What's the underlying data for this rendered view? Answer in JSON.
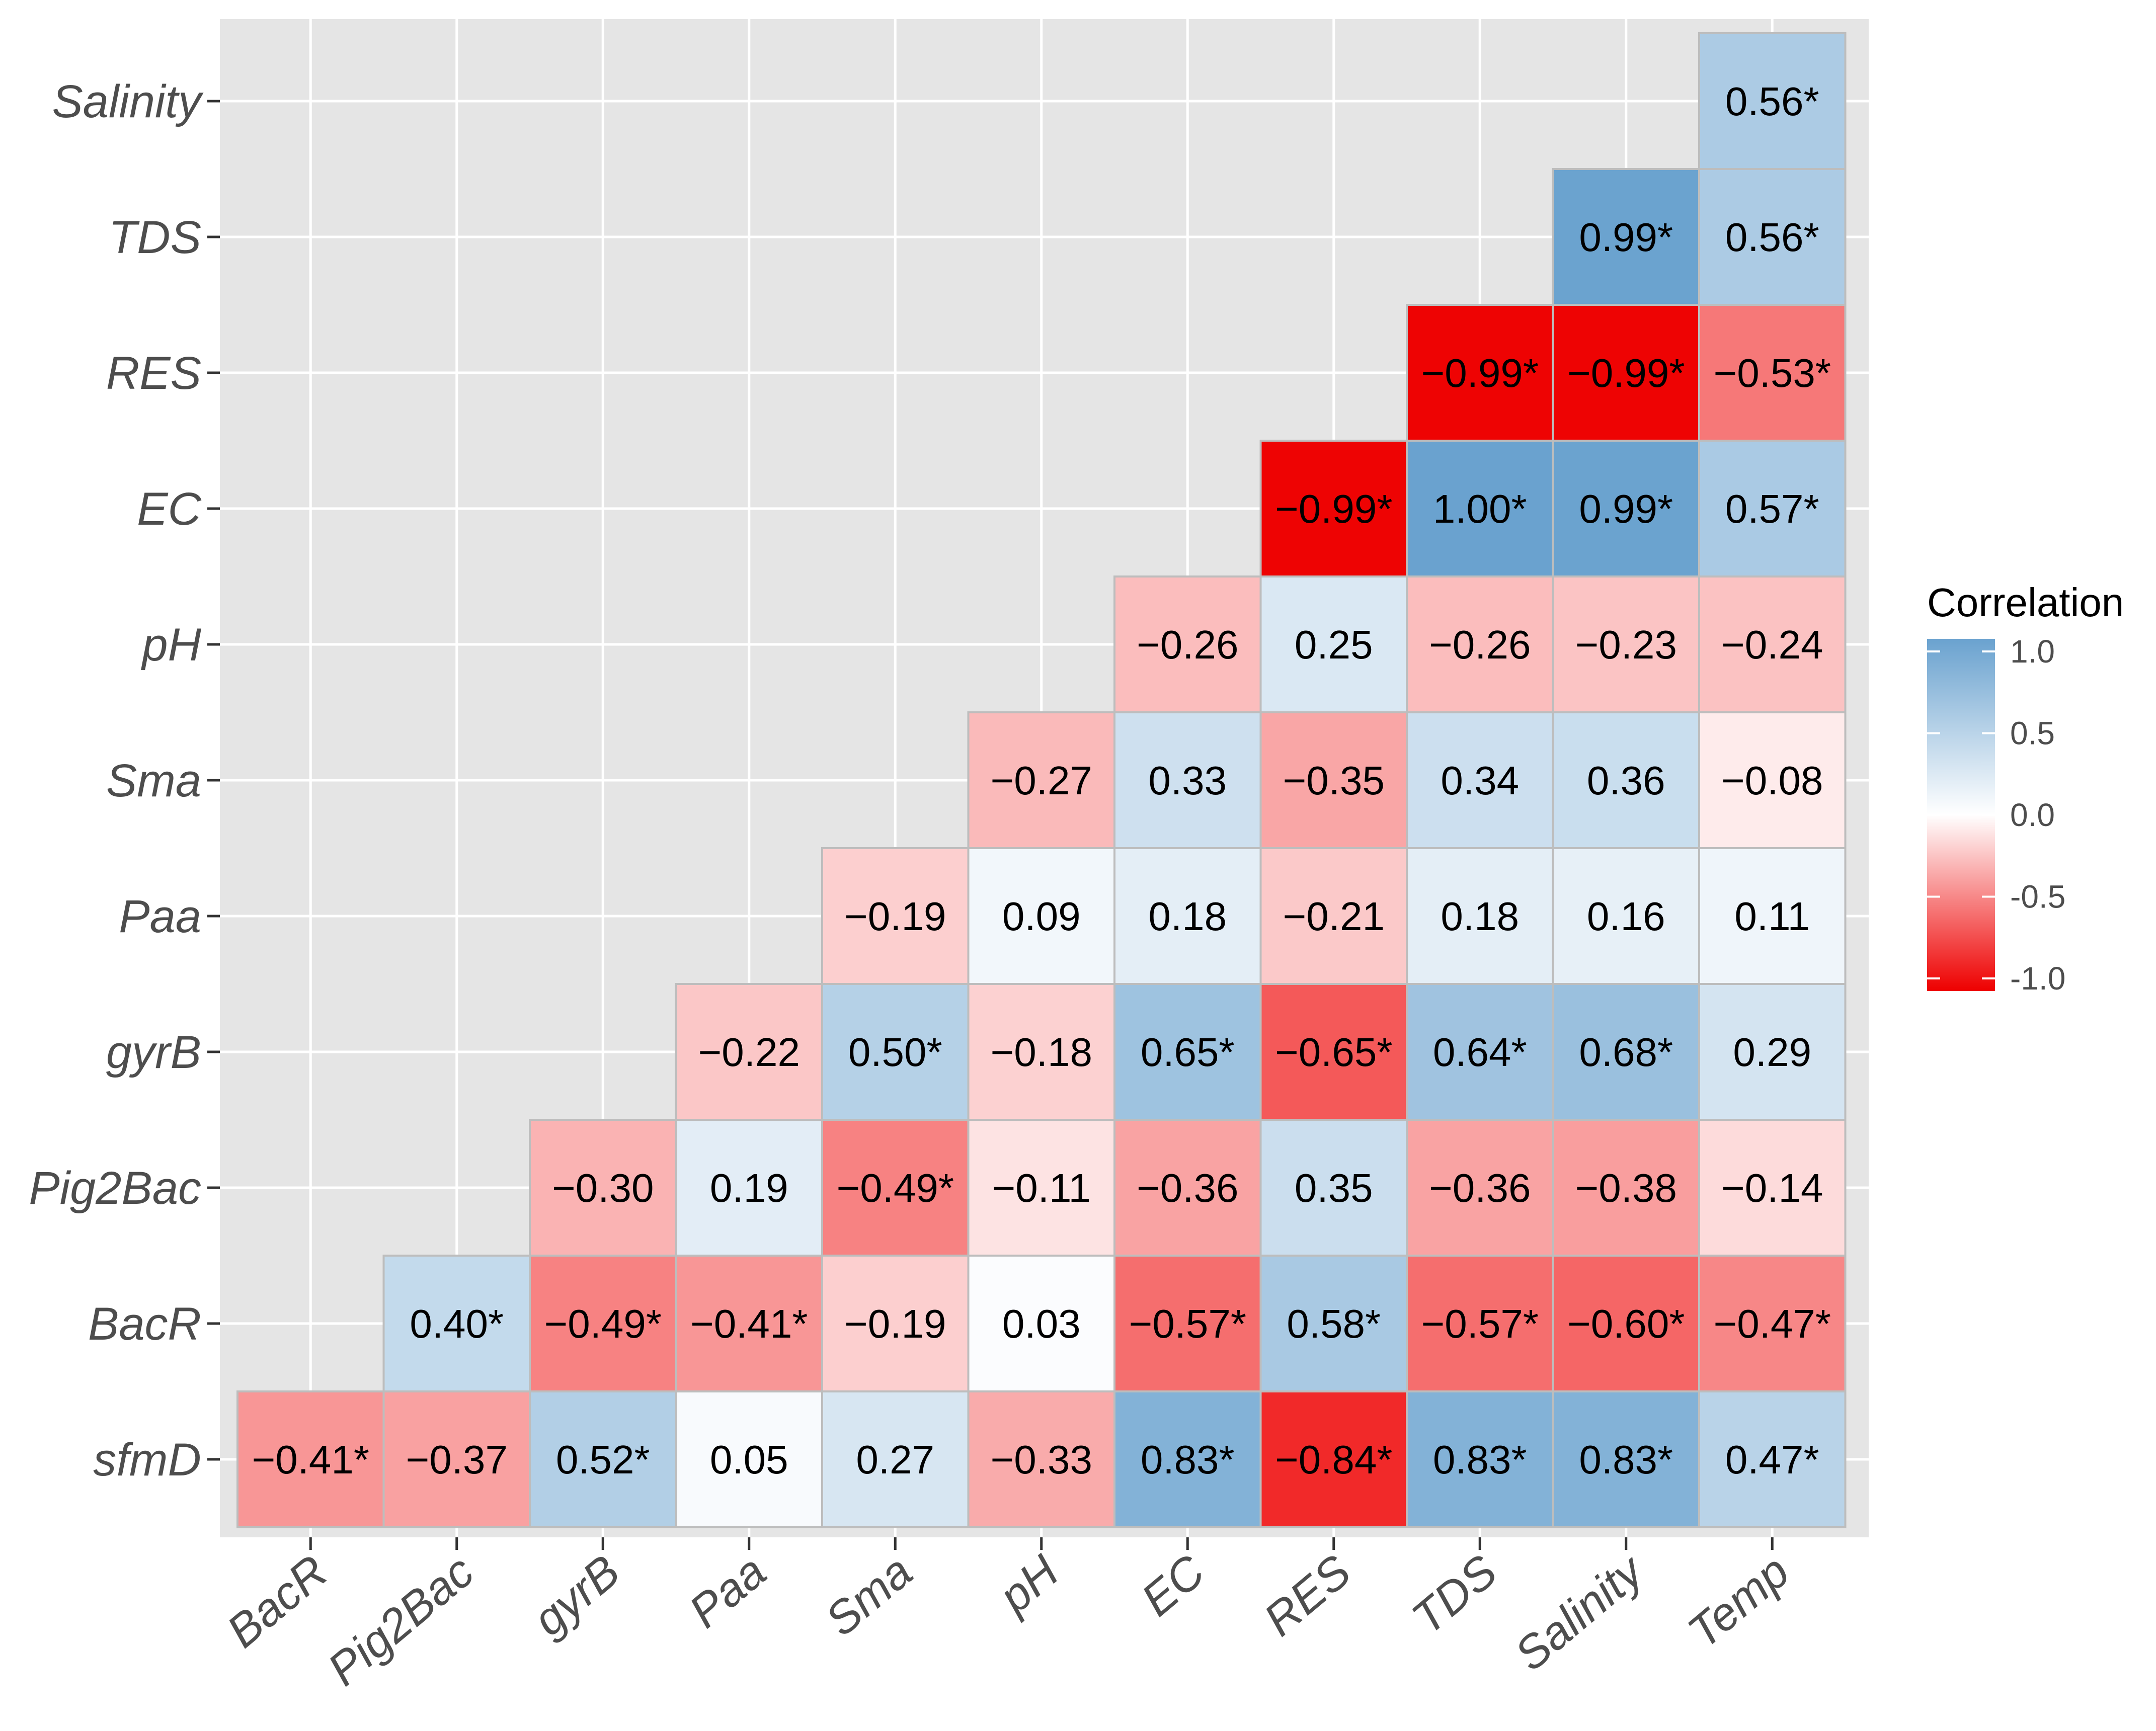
{
  "chart_data": {
    "type": "heatmap",
    "x_categories": [
      "BacR",
      "Pig2Bac",
      "gyrB",
      "Paa",
      "Sma",
      "pH",
      "EC",
      "RES",
      "TDS",
      "Salinity",
      "Temp"
    ],
    "y_categories": [
      "sfmD",
      "BacR",
      "Pig2Bac",
      "gyrB",
      "Paa",
      "Sma",
      "pH",
      "EC",
      "RES",
      "TDS",
      "Salinity"
    ],
    "cells": [
      {
        "x": "BacR",
        "y": "sfmD",
        "value": -0.41,
        "label": "−0.41*"
      },
      {
        "x": "Pig2Bac",
        "y": "sfmD",
        "value": -0.37,
        "label": "−0.37"
      },
      {
        "x": "gyrB",
        "y": "sfmD",
        "value": 0.52,
        "label": "0.52*"
      },
      {
        "x": "Paa",
        "y": "sfmD",
        "value": 0.05,
        "label": "0.05"
      },
      {
        "x": "Sma",
        "y": "sfmD",
        "value": 0.27,
        "label": "0.27"
      },
      {
        "x": "pH",
        "y": "sfmD",
        "value": -0.33,
        "label": "−0.33"
      },
      {
        "x": "EC",
        "y": "sfmD",
        "value": 0.83,
        "label": "0.83*"
      },
      {
        "x": "RES",
        "y": "sfmD",
        "value": -0.84,
        "label": "−0.84*"
      },
      {
        "x": "TDS",
        "y": "sfmD",
        "value": 0.83,
        "label": "0.83*"
      },
      {
        "x": "Salinity",
        "y": "sfmD",
        "value": 0.83,
        "label": "0.83*"
      },
      {
        "x": "Temp",
        "y": "sfmD",
        "value": 0.47,
        "label": "0.47*"
      },
      {
        "x": "Pig2Bac",
        "y": "BacR",
        "value": 0.4,
        "label": "0.40*"
      },
      {
        "x": "gyrB",
        "y": "BacR",
        "value": -0.49,
        "label": "−0.49*"
      },
      {
        "x": "Paa",
        "y": "BacR",
        "value": -0.41,
        "label": "−0.41*"
      },
      {
        "x": "Sma",
        "y": "BacR",
        "value": -0.19,
        "label": "−0.19"
      },
      {
        "x": "pH",
        "y": "BacR",
        "value": 0.03,
        "label": "0.03"
      },
      {
        "x": "EC",
        "y": "BacR",
        "value": -0.57,
        "label": "−0.57*"
      },
      {
        "x": "RES",
        "y": "BacR",
        "value": 0.58,
        "label": "0.58*"
      },
      {
        "x": "TDS",
        "y": "BacR",
        "value": -0.57,
        "label": "−0.57*"
      },
      {
        "x": "Salinity",
        "y": "BacR",
        "value": -0.6,
        "label": "−0.60*"
      },
      {
        "x": "Temp",
        "y": "BacR",
        "value": -0.47,
        "label": "−0.47*"
      },
      {
        "x": "gyrB",
        "y": "Pig2Bac",
        "value": -0.3,
        "label": "−0.30"
      },
      {
        "x": "Paa",
        "y": "Pig2Bac",
        "value": 0.19,
        "label": "0.19"
      },
      {
        "x": "Sma",
        "y": "Pig2Bac",
        "value": -0.49,
        "label": "−0.49*"
      },
      {
        "x": "pH",
        "y": "Pig2Bac",
        "value": -0.11,
        "label": "−0.11"
      },
      {
        "x": "EC",
        "y": "Pig2Bac",
        "value": -0.36,
        "label": "−0.36"
      },
      {
        "x": "RES",
        "y": "Pig2Bac",
        "value": 0.35,
        "label": "0.35"
      },
      {
        "x": "TDS",
        "y": "Pig2Bac",
        "value": -0.36,
        "label": "−0.36"
      },
      {
        "x": "Salinity",
        "y": "Pig2Bac",
        "value": -0.38,
        "label": "−0.38"
      },
      {
        "x": "Temp",
        "y": "Pig2Bac",
        "value": -0.14,
        "label": "−0.14"
      },
      {
        "x": "Paa",
        "y": "gyrB",
        "value": -0.22,
        "label": "−0.22"
      },
      {
        "x": "Sma",
        "y": "gyrB",
        "value": 0.5,
        "label": "0.50*"
      },
      {
        "x": "pH",
        "y": "gyrB",
        "value": -0.18,
        "label": "−0.18"
      },
      {
        "x": "EC",
        "y": "gyrB",
        "value": 0.65,
        "label": "0.65*"
      },
      {
        "x": "RES",
        "y": "gyrB",
        "value": -0.65,
        "label": "−0.65*"
      },
      {
        "x": "TDS",
        "y": "gyrB",
        "value": 0.64,
        "label": "0.64*"
      },
      {
        "x": "Salinity",
        "y": "gyrB",
        "value": 0.68,
        "label": "0.68*"
      },
      {
        "x": "Temp",
        "y": "gyrB",
        "value": 0.29,
        "label": "0.29"
      },
      {
        "x": "Sma",
        "y": "Paa",
        "value": -0.19,
        "label": "−0.19"
      },
      {
        "x": "pH",
        "y": "Paa",
        "value": 0.09,
        "label": "0.09"
      },
      {
        "x": "EC",
        "y": "Paa",
        "value": 0.18,
        "label": "0.18"
      },
      {
        "x": "RES",
        "y": "Paa",
        "value": -0.21,
        "label": "−0.21"
      },
      {
        "x": "TDS",
        "y": "Paa",
        "value": 0.18,
        "label": "0.18"
      },
      {
        "x": "Salinity",
        "y": "Paa",
        "value": 0.16,
        "label": "0.16"
      },
      {
        "x": "Temp",
        "y": "Paa",
        "value": 0.11,
        "label": "0.11"
      },
      {
        "x": "pH",
        "y": "Sma",
        "value": -0.27,
        "label": "−0.27"
      },
      {
        "x": "EC",
        "y": "Sma",
        "value": 0.33,
        "label": "0.33"
      },
      {
        "x": "RES",
        "y": "Sma",
        "value": -0.35,
        "label": "−0.35"
      },
      {
        "x": "TDS",
        "y": "Sma",
        "value": 0.34,
        "label": "0.34"
      },
      {
        "x": "Salinity",
        "y": "Sma",
        "value": 0.36,
        "label": "0.36"
      },
      {
        "x": "Temp",
        "y": "Sma",
        "value": -0.08,
        "label": "−0.08"
      },
      {
        "x": "EC",
        "y": "pH",
        "value": -0.26,
        "label": "−0.26"
      },
      {
        "x": "RES",
        "y": "pH",
        "value": 0.25,
        "label": "0.25"
      },
      {
        "x": "TDS",
        "y": "pH",
        "value": -0.26,
        "label": "−0.26"
      },
      {
        "x": "Salinity",
        "y": "pH",
        "value": -0.23,
        "label": "−0.23"
      },
      {
        "x": "Temp",
        "y": "pH",
        "value": -0.24,
        "label": "−0.24"
      },
      {
        "x": "RES",
        "y": "EC",
        "value": -0.99,
        "label": "−0.99*"
      },
      {
        "x": "TDS",
        "y": "EC",
        "value": 1.0,
        "label": "1.00*"
      },
      {
        "x": "Salinity",
        "y": "EC",
        "value": 0.99,
        "label": "0.99*"
      },
      {
        "x": "Temp",
        "y": "EC",
        "value": 0.57,
        "label": "0.57*"
      },
      {
        "x": "TDS",
        "y": "RES",
        "value": -0.99,
        "label": "−0.99*"
      },
      {
        "x": "Salinity",
        "y": "RES",
        "value": -0.99,
        "label": "−0.99*"
      },
      {
        "x": "Temp",
        "y": "RES",
        "value": -0.53,
        "label": "−0.53*"
      },
      {
        "x": "Salinity",
        "y": "TDS",
        "value": 0.99,
        "label": "0.99*"
      },
      {
        "x": "Temp",
        "y": "TDS",
        "value": 0.56,
        "label": "0.56*"
      },
      {
        "x": "Temp",
        "y": "Salinity",
        "value": 0.56,
        "label": "0.56*"
      }
    ],
    "title": "",
    "xlabel": "",
    "ylabel": "",
    "legend": {
      "title": "Correlation",
      "position": "right",
      "range": [
        -1.0,
        1.0
      ],
      "ticks": [
        {
          "value": 1.0,
          "label": "1.0"
        },
        {
          "value": 0.5,
          "label": "0.5"
        },
        {
          "value": 0.0,
          "label": "0.0"
        },
        {
          "value": -0.5,
          "label": "-0.5"
        },
        {
          "value": -1.0,
          "label": "-1.0"
        }
      ]
    },
    "colors": {
      "low": "#ee0000",
      "mid": "#ffffff",
      "high": "#6aa2cf",
      "panel_background": "#e5e5e5",
      "grid": "#ffffff",
      "cell_border": "#bdbdbd"
    },
    "grid": true
  }
}
